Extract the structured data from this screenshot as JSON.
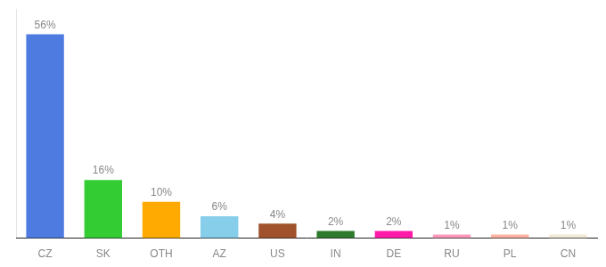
{
  "chart_data": {
    "type": "bar",
    "categories": [
      "CZ",
      "SK",
      "OTH",
      "AZ",
      "US",
      "IN",
      "DE",
      "RU",
      "PL",
      "CN"
    ],
    "values": [
      56,
      16,
      10,
      6,
      4,
      2,
      2,
      1,
      1,
      1
    ],
    "value_labels": [
      "56%",
      "16%",
      "10%",
      "6%",
      "4%",
      "2%",
      "2%",
      "1%",
      "1%",
      "1%"
    ],
    "colors": [
      "#4d7be0",
      "#33cc33",
      "#ffaa00",
      "#87ceeb",
      "#a0522d",
      "#2d7a2d",
      "#ff1aaa",
      "#ff99bb",
      "#ffb3a0",
      "#f0ead6"
    ],
    "ylim": [
      0,
      63
    ],
    "data_labels": true,
    "tick_labels": "x",
    "grid": false
  }
}
